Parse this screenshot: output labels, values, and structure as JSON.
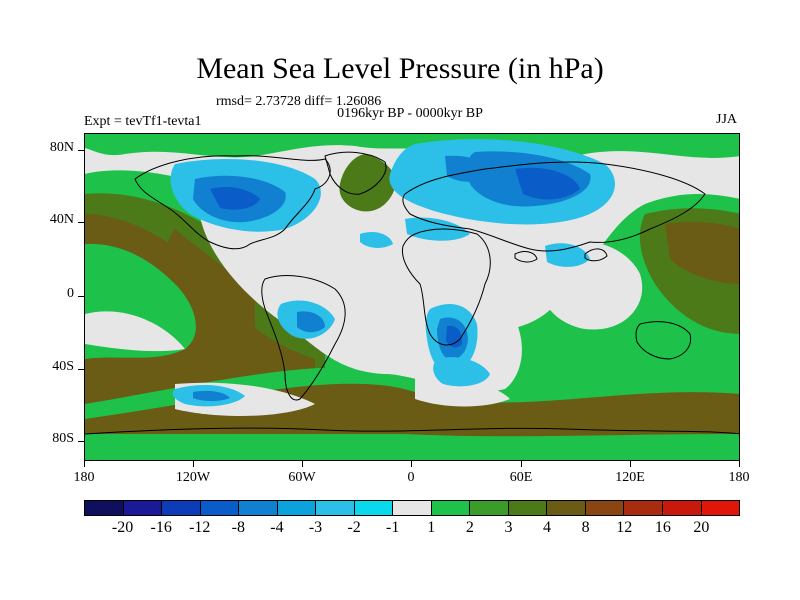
{
  "title": "Mean Sea Level Pressure (in hPa)",
  "stats": "rmsd= 2.73728 diff= 1.26086",
  "period": "0196kyr BP - 0000kyr BP",
  "experiment": "Expt = tevTf1-tevta1",
  "season": "JJA",
  "axes": {
    "x_ticks": [
      "180",
      "120W",
      "60W",
      "0",
      "60E",
      "120E",
      "180"
    ],
    "y_ticks": [
      "80N",
      "40N",
      "0",
      "40S",
      "80S"
    ]
  },
  "colorbar": {
    "labels": [
      "-20",
      "-16",
      "-12",
      "-8",
      "-4",
      "-3",
      "-2",
      "-1",
      "1",
      "2",
      "3",
      "4",
      "8",
      "12",
      "16",
      "20"
    ],
    "colors": [
      "#0f0f5e",
      "#1a1a98",
      "#0c3cb8",
      "#0a5cc8",
      "#1280d0",
      "#0ca2dc",
      "#2cc0e8",
      "#0ad8ec",
      "#e6e6e6",
      "#1ec24a",
      "#3c9c2a",
      "#4c7a18",
      "#6a5c14",
      "#8a4612",
      "#a82c10",
      "#c81a0c",
      "#e0160a"
    ]
  },
  "colors": {
    "background_land": "#e6e6e6",
    "coastline": "#000000"
  }
}
